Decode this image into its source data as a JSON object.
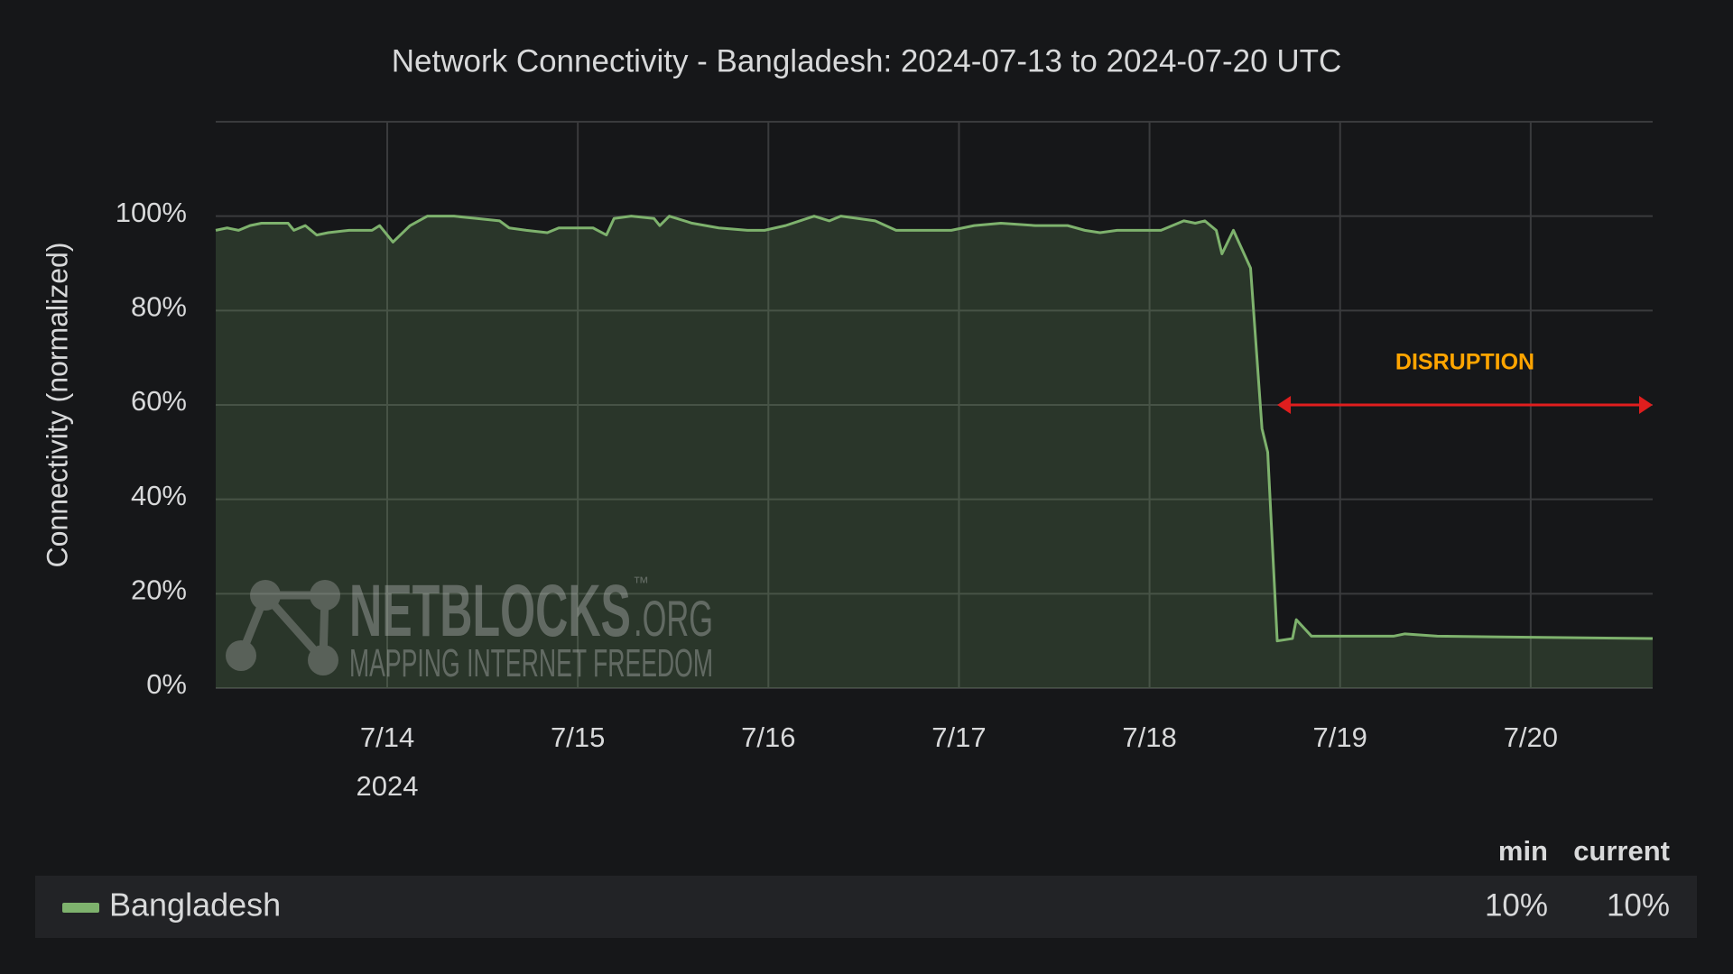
{
  "chart_data": {
    "type": "line",
    "title": "Network Connectivity - Bangladesh: 2024-07-13 to 2024-07-20 UTC",
    "y_label": "Connectivity (normalized)",
    "x": [
      13.1,
      13.16,
      13.22,
      13.28,
      13.34,
      13.48,
      13.51,
      13.57,
      13.63,
      13.69,
      13.8,
      13.92,
      13.96,
      14.03,
      14.12,
      14.21,
      14.35,
      14.47,
      14.59,
      14.64,
      14.73,
      14.84,
      14.9,
      15.08,
      15.15,
      15.19,
      15.28,
      15.4,
      15.43,
      15.48,
      15.6,
      15.74,
      15.89,
      15.98,
      16.09,
      16.24,
      16.32,
      16.38,
      16.56,
      16.67,
      16.79,
      16.96,
      17.08,
      17.22,
      17.4,
      17.57,
      17.66,
      17.74,
      17.83,
      17.98,
      18.06,
      18.18,
      18.24,
      18.29,
      18.35,
      18.38,
      18.44,
      18.53,
      18.59,
      18.62,
      18.67,
      18.75,
      18.77,
      18.85,
      19.28,
      19.34,
      19.51,
      20.64
    ],
    "series": [
      {
        "name": "Bangladesh",
        "color": "#7eb26d",
        "values": [
          97,
          97.5,
          97,
          98,
          98.5,
          98.5,
          97,
          98,
          96,
          96.5,
          97,
          97,
          98,
          94.5,
          98,
          100,
          100,
          99.5,
          99,
          97.5,
          97,
          96.5,
          97.5,
          97.5,
          96,
          99.5,
          100,
          99.5,
          98,
          100,
          98.5,
          97.5,
          97,
          97,
          98,
          100,
          99,
          100,
          99,
          97,
          97,
          97,
          98,
          98.5,
          98,
          98,
          97,
          96.5,
          97,
          97,
          97,
          99,
          98.5,
          99,
          97,
          92,
          97,
          89,
          55,
          50,
          10,
          10.5,
          14.5,
          11,
          11,
          11.5,
          11,
          10.5
        ]
      }
    ],
    "xlim": [
      13.1,
      20.64
    ],
    "xticks": [
      {
        "value": 14,
        "label": "7/14"
      },
      {
        "value": 15,
        "label": "7/15"
      },
      {
        "value": 16,
        "label": "7/16"
      },
      {
        "value": 17,
        "label": "7/17"
      },
      {
        "value": 18,
        "label": "7/18"
      },
      {
        "value": 19,
        "label": "7/19"
      },
      {
        "value": 20,
        "label": "7/20"
      }
    ],
    "x_year_label": "2024",
    "ylim": [
      0,
      120
    ],
    "yticks": [
      {
        "value": 0,
        "label": "0%"
      },
      {
        "value": 20,
        "label": "20%"
      },
      {
        "value": 40,
        "label": "40%"
      },
      {
        "value": 60,
        "label": "60%"
      },
      {
        "value": 80,
        "label": "80%"
      },
      {
        "value": 100,
        "label": "100%"
      }
    ],
    "grid": true,
    "annotation": {
      "text": "DISRUPTION",
      "x": [
        18.67,
        20.64
      ],
      "y": 60,
      "color": "#ffa500",
      "arrow_color": "#e01e1e"
    },
    "legend_stats": {
      "columns": [
        "min",
        "current"
      ],
      "values": [
        "10%",
        "10%"
      ]
    },
    "watermark": {
      "name": "NETBLOCKS",
      "tm": "™",
      "suffix": ".ORG",
      "tagline": "MAPPING INTERNET FREEDOM"
    }
  }
}
